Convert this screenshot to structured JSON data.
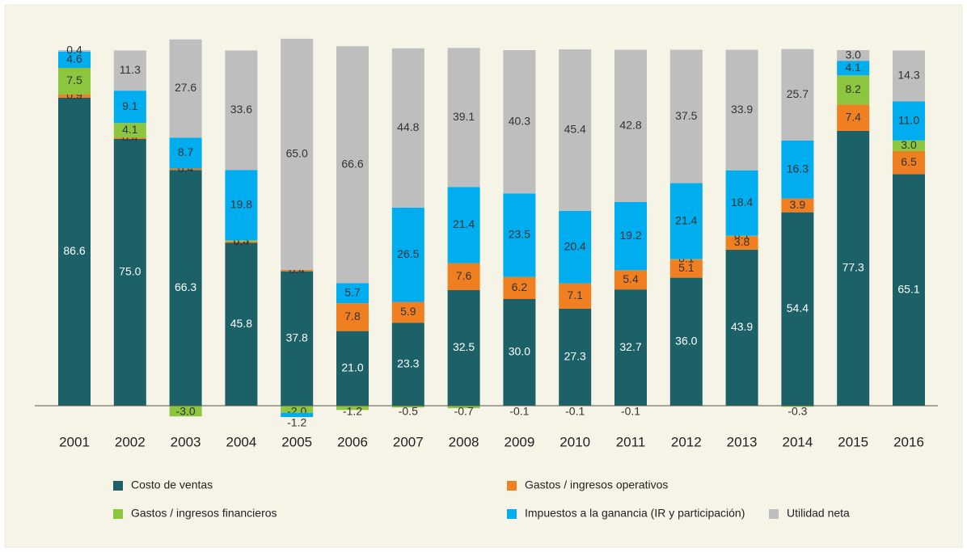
{
  "chart_data": {
    "type": "bar",
    "stacked": true,
    "categories": [
      "2001",
      "2002",
      "2003",
      "2004",
      "2005",
      "2006",
      "2007",
      "2008",
      "2009",
      "2010",
      "2011",
      "2012",
      "2013",
      "2014",
      "2015",
      "2016"
    ],
    "ylim": [
      -5,
      100
    ],
    "series": [
      {
        "name": "Costo de ventas",
        "color": "#1c6168",
        "values": [
          86.6,
          75.0,
          66.3,
          45.8,
          37.8,
          21.0,
          23.3,
          32.5,
          30.0,
          27.3,
          32.7,
          36.0,
          43.9,
          54.4,
          77.3,
          65.1
        ],
        "value_labels": [
          "86.6",
          "75.0",
          "66.3",
          "45.8",
          "37.8",
          "21.0",
          "23.3",
          "32.5",
          "30.0",
          "27.3",
          "32.7",
          "36.0",
          "43.9",
          "54.4",
          "77.3",
          "65.1"
        ]
      },
      {
        "name": "Gastos / ingresos operativos",
        "color": "#f07f22",
        "values": [
          0.9,
          0.4,
          0.4,
          0.4,
          0.4,
          7.8,
          5.9,
          7.6,
          6.2,
          7.1,
          5.4,
          5.1,
          3.8,
          3.9,
          7.4,
          6.5
        ],
        "value_labels": [
          "0.9",
          "0.4",
          "0.4",
          "0.4",
          "0.4",
          "7.8",
          "5.9",
          "7.6",
          "6.2",
          "7.1",
          "5.4",
          "5.1",
          "3.8",
          "3.9",
          "7.4",
          "6.5"
        ]
      },
      {
        "name": "Gastos / ingresos financieros",
        "color": "#8cc63f",
        "values": [
          7.5,
          4.1,
          -3.0,
          0.3,
          -2.0,
          -1.2,
          -0.5,
          -0.7,
          -0.1,
          -0.1,
          -0.1,
          0.1,
          0.1,
          -0.3,
          8.2,
          3.0
        ],
        "value_labels": [
          "7.5",
          "4.1",
          "-3.0",
          "0.3",
          "-2.0",
          "-1.2",
          "-0.5",
          "-0.7",
          "-0.1",
          "-0.1",
          "-0.1",
          "0.1",
          "0.1",
          "-0.3",
          "8.2",
          "3.0"
        ]
      },
      {
        "name": "Impuestos a la ganancia (IR y participación)",
        "color": "#00adee",
        "values": [
          4.6,
          9.1,
          8.7,
          19.8,
          -1.2,
          5.7,
          26.5,
          21.4,
          23.5,
          20.4,
          19.2,
          21.4,
          18.4,
          16.3,
          4.1,
          11.0
        ],
        "value_labels": [
          "4.6",
          "9.1",
          "8.7",
          "19.8",
          "-1.2",
          "5.7",
          "26.5",
          "21.4",
          "23.5",
          "20.4",
          "19.2",
          "21.4",
          "18.4",
          "16.3",
          "4.1",
          "11.0"
        ]
      },
      {
        "name": "Utilidad neta",
        "color": "#bebebe",
        "values": [
          0.4,
          11.3,
          27.6,
          33.6,
          65.0,
          66.6,
          44.8,
          39.1,
          40.3,
          45.4,
          42.8,
          37.5,
          33.9,
          25.7,
          3.0,
          14.3
        ],
        "value_labels": [
          "0.4",
          "11.3",
          "27.6",
          "33.6",
          "65.0",
          "66.6",
          "44.8",
          "39.1",
          "40.3",
          "45.4",
          "42.8",
          "37.5",
          "33.9",
          "25.7",
          "3.0",
          "14.3"
        ]
      }
    ]
  }
}
